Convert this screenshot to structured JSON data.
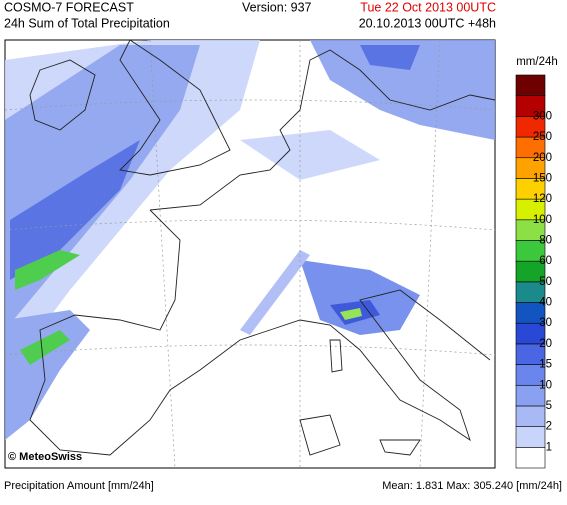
{
  "header": {
    "title": "COSMO-7 FORECAST",
    "subtitle": "24h Sum of Total Precipitation",
    "version": "Version: 937",
    "valid_time": "Tue 22 Oct 2013 00UTC",
    "run": "20.10.2013 00UTC +48h"
  },
  "legend": {
    "unit": "mm/24h",
    "levels": [
      1,
      2,
      5,
      10,
      15,
      20,
      30,
      40,
      50,
      60,
      80,
      100,
      120,
      150,
      200,
      250,
      300
    ],
    "colors": [
      "#ffffff",
      "#c8d4fa",
      "#a9b9f6",
      "#8aa0f0",
      "#6a86ec",
      "#4a66e2",
      "#2a48d6",
      "#1254c0",
      "#1a8a8a",
      "#14a428",
      "#3cc83c",
      "#8ce046",
      "#d6f000",
      "#ffd000",
      "#ffa200",
      "#ff6e00",
      "#f02800",
      "#b40000",
      "#6e0000"
    ]
  },
  "map": {
    "credit": "© MeteoSwiss"
  },
  "footer": {
    "left": "Precipitation Amount [mm/24h]",
    "right": "Mean:  1.831 Max: 305.240 [mm/24h]"
  }
}
